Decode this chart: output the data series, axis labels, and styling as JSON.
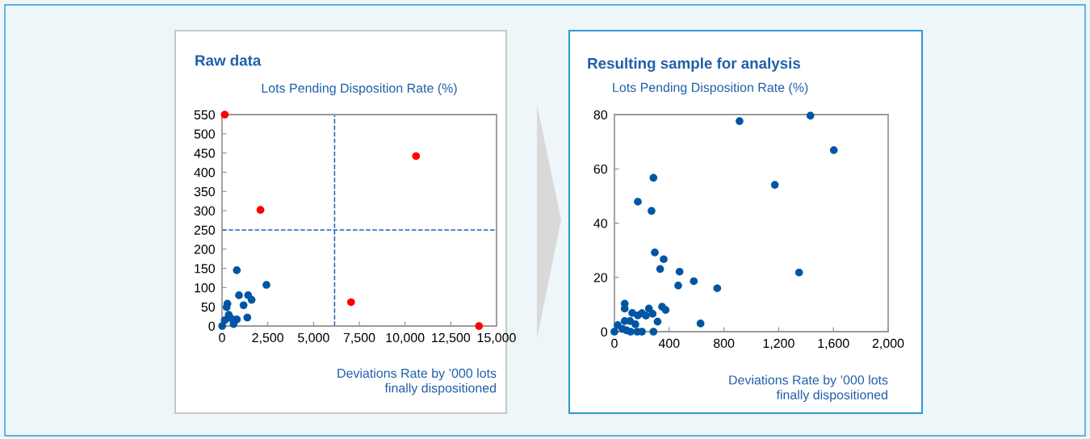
{
  "chart_data": [
    {
      "type": "scatter",
      "title": "Raw data",
      "ylabel": "Lots Pending Disposition Rate (%)",
      "xlabel": "Deviations Rate by ’000 lots\nfinally dispositioned",
      "xlim": [
        0,
        15000
      ],
      "xticks": [
        0,
        {
          "value": 2500,
          "label": "2,500"
        },
        {
          "value": 5000,
          "label": "5,000"
        },
        {
          "value": 7500,
          "label": "7,500"
        },
        {
          "value": 10000,
          "label": "10,000"
        },
        {
          "value": 12500,
          "label": "12,500"
        },
        {
          "value": 15000,
          "label": "15,000"
        }
      ],
      "ylim": [
        0,
        550
      ],
      "yticks": [
        0,
        50,
        100,
        150,
        200,
        250,
        300,
        350,
        400,
        450,
        500,
        550
      ],
      "grid": false,
      "legend": false,
      "marker": "circle",
      "series": [
        {
          "color": "#0055a4",
          "x": [
            808,
            2426,
            926,
            1426,
            1618,
            1176,
            1382,
            294,
            250,
            368,
            808,
            632,
            514,
            147,
            10
          ],
          "values": [
            145,
            107,
            80,
            80,
            68,
            54,
            22,
            58,
            49,
            29,
            17,
            5,
            19,
            15,
            0
          ]
        },
        {
          "color": "#ff0000",
          "x": [
            150,
            2100,
            10600,
            7050,
            14040
          ],
          "values": [
            550,
            302,
            442,
            62,
            0
          ]
        }
      ],
      "ref_lines": [
        {
          "axis": "x",
          "value": 6150,
          "color": "#1f64b4",
          "line_style": "dashed"
        },
        {
          "axis": "y",
          "value": 250,
          "color": "#1f64b4",
          "line_style": "dashed"
        }
      ]
    },
    {
      "type": "scatter",
      "title": "Resulting sample for analysis",
      "ylabel": "Lots Pending Disposition Rate (%)",
      "xlabel": "Deviations Rate by ’000 lots\nfinally dispositioned",
      "xlim": [
        0,
        2000
      ],
      "xticks": [
        0,
        400,
        800,
        {
          "value": 1200,
          "label": "1,200"
        },
        {
          "value": 1600,
          "label": "1,600"
        },
        {
          "value": 2000,
          "label": "2,000"
        }
      ],
      "ylim": [
        0,
        80
      ],
      "yticks": [
        0,
        20,
        40,
        60,
        80
      ],
      "grid": false,
      "legend": false,
      "marker": "circle",
      "series": [
        {
          "color": "#0055a4",
          "x": [
            914,
            1432,
            1603,
            1172,
            1349,
            285,
            171,
            271,
            295,
            360,
            334,
            476,
            466,
            580,
            751,
            629,
            348,
            374,
            75,
            75,
            130,
            171,
            201,
            230,
            252,
            279,
            315,
            75,
            114,
            153,
            24,
            0,
            59,
            118,
            167,
            201,
            285,
            88
          ],
          "values": [
            77.6,
            79.6,
            66.9,
            54.1,
            21.8,
            56.7,
            47.9,
            44.5,
            29.2,
            26.7,
            23.1,
            22.1,
            17.0,
            18.6,
            16.0,
            3.0,
            9.2,
            8.0,
            10.3,
            8.5,
            6.9,
            6.0,
            6.8,
            5.9,
            8.5,
            6.6,
            3.7,
            3.9,
            3.9,
            2.7,
            2.4,
            0,
            1.0,
            0,
            0,
            0,
            0,
            0.5
          ]
        }
      ]
    }
  ]
}
